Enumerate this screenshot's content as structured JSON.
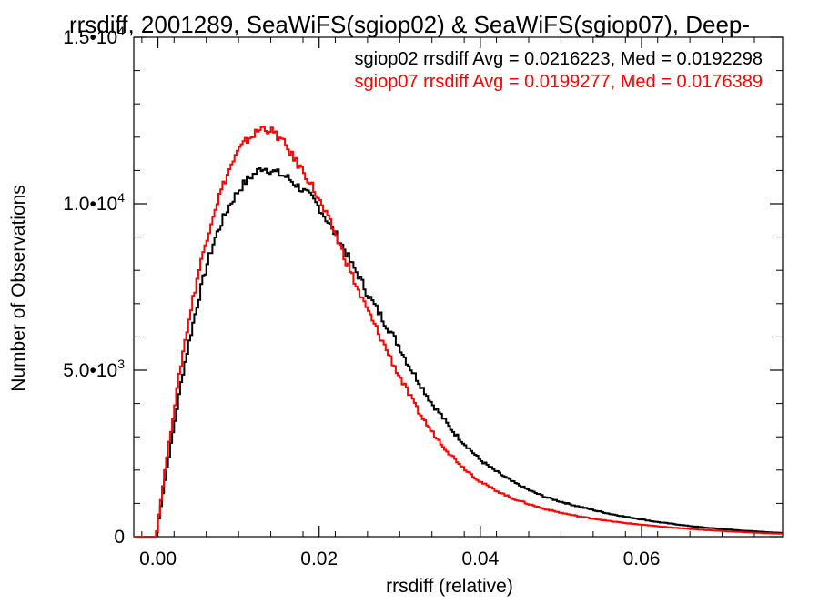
{
  "chart_data": {
    "type": "line",
    "title": "rrsdiff, 2001289, SeaWiFS(sgiop02) & SeaWiFS(sgiop07), Deep-",
    "xlabel": "rrsdiff (relative)",
    "ylabel": "Number of Observations",
    "xlim": [
      -0.003,
      0.0775
    ],
    "ylim": [
      0,
      15000
    ],
    "xticks": [
      {
        "value": 0.0,
        "label": "0.00"
      },
      {
        "value": 0.02,
        "label": "0.02"
      },
      {
        "value": 0.04,
        "label": "0.04"
      },
      {
        "value": 0.06,
        "label": "0.06"
      }
    ],
    "yticks": [
      {
        "value": 0,
        "label": "0",
        "exp": ""
      },
      {
        "value": 5000,
        "label": "5.0•10",
        "exp": "3"
      },
      {
        "value": 10000,
        "label": "1.0•10",
        "exp": "4"
      },
      {
        "value": 15000,
        "label": "1.5•10",
        "exp": "4"
      }
    ],
    "grid": false,
    "series": [
      {
        "name": "sgiop02",
        "legend": "sgiop02 rrsdiff Avg = 0.0216223, Med = 0.0192298",
        "color": "#000000",
        "x": [
          -0.003,
          -0.0002,
          0.0,
          0.001,
          0.002,
          0.003,
          0.004,
          0.005,
          0.006,
          0.007,
          0.008,
          0.009,
          0.01,
          0.011,
          0.012,
          0.013,
          0.014,
          0.015,
          0.016,
          0.017,
          0.018,
          0.019,
          0.02,
          0.021,
          0.022,
          0.023,
          0.024,
          0.025,
          0.026,
          0.027,
          0.028,
          0.029,
          0.03,
          0.031,
          0.032,
          0.033,
          0.034,
          0.035,
          0.036,
          0.037,
          0.038,
          0.039,
          0.04,
          0.042,
          0.044,
          0.046,
          0.048,
          0.05,
          0.052,
          0.054,
          0.056,
          0.058,
          0.06,
          0.062,
          0.064,
          0.066,
          0.068,
          0.07,
          0.072,
          0.074,
          0.076,
          0.0775
        ],
        "y": [
          0,
          0,
          350,
          1900,
          3300,
          4800,
          6000,
          7100,
          8100,
          8900,
          9500,
          10000,
          10400,
          10700,
          10900,
          11100,
          11000,
          10900,
          10800,
          10600,
          10400,
          10200,
          9900,
          9500,
          9100,
          8700,
          8200,
          7800,
          7300,
          6900,
          6500,
          6100,
          5700,
          5200,
          4800,
          4400,
          4000,
          3700,
          3350,
          3050,
          2800,
          2550,
          2300,
          1950,
          1650,
          1400,
          1200,
          1050,
          920,
          800,
          690,
          600,
          520,
          440,
          380,
          320,
          270,
          230,
          190,
          160,
          130,
          110
        ]
      },
      {
        "name": "sgiop07",
        "legend": "sgiop07 rrsdiff Avg = 0.0199277, Med = 0.0176389",
        "color": "#ff0000",
        "x": [
          -0.003,
          -0.0002,
          0.0,
          0.001,
          0.002,
          0.003,
          0.004,
          0.005,
          0.006,
          0.007,
          0.008,
          0.009,
          0.01,
          0.011,
          0.012,
          0.013,
          0.014,
          0.015,
          0.016,
          0.017,
          0.018,
          0.019,
          0.02,
          0.021,
          0.022,
          0.023,
          0.024,
          0.025,
          0.026,
          0.027,
          0.028,
          0.029,
          0.03,
          0.031,
          0.032,
          0.033,
          0.034,
          0.035,
          0.036,
          0.037,
          0.038,
          0.039,
          0.04,
          0.042,
          0.044,
          0.046,
          0.048,
          0.05,
          0.052,
          0.054,
          0.056,
          0.058,
          0.06,
          0.062,
          0.064,
          0.066,
          0.068,
          0.07,
          0.072,
          0.074,
          0.076,
          0.0775
        ],
        "y": [
          0,
          0,
          450,
          2200,
          3800,
          5400,
          6700,
          7900,
          8900,
          9800,
          10500,
          11100,
          11600,
          11900,
          12100,
          12300,
          12200,
          12000,
          11700,
          11300,
          11000,
          10600,
          10100,
          9600,
          9100,
          8500,
          7900,
          7300,
          6800,
          6300,
          5800,
          5300,
          4800,
          4350,
          3900,
          3500,
          3150,
          2850,
          2550,
          2300,
          2050,
          1850,
          1650,
          1380,
          1150,
          980,
          830,
          720,
          620,
          540,
          470,
          410,
          360,
          310,
          270,
          230,
          200,
          170,
          145,
          120,
          100,
          85
        ]
      }
    ]
  }
}
